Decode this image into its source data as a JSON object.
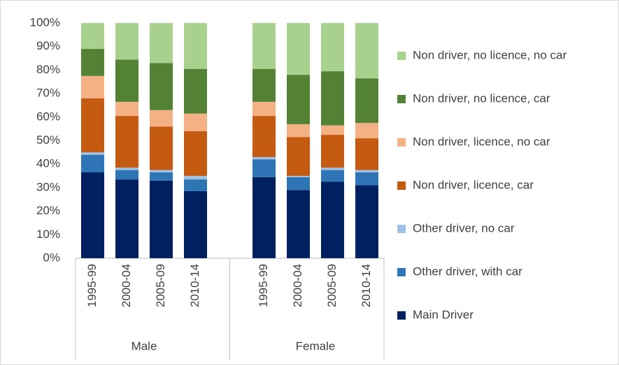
{
  "chart_data": {
    "type": "stacked-bar",
    "groups": [
      {
        "name": "Male",
        "categories": [
          "1995-99",
          "2000-04",
          "2005-09",
          "2010-14"
        ]
      },
      {
        "name": "Female",
        "categories": [
          "1995-99",
          "2000-04",
          "2005-09",
          "2010-14"
        ]
      }
    ],
    "series": [
      {
        "name": "Main Driver",
        "color": "#002060",
        "values": [
          36.5,
          33.5,
          33,
          28.5,
          34.5,
          29,
          32.5,
          31
        ]
      },
      {
        "name": "Other driver, with car",
        "color": "#2e75b6",
        "values": [
          7.5,
          4,
          3.5,
          5,
          7.5,
          5.5,
          5,
          5.5
        ]
      },
      {
        "name": "Other driver, no car",
        "color": "#9dc3e6",
        "values": [
          1,
          1,
          1,
          1.5,
          1,
          0.5,
          1,
          1
        ]
      },
      {
        "name": "Non driver, licence, car",
        "color": "#c55a11",
        "values": [
          23,
          22,
          18.5,
          19,
          17.5,
          16.5,
          14,
          13.5
        ]
      },
      {
        "name": "Non driver, licence, no car",
        "color": "#f4b183",
        "values": [
          9.5,
          6,
          7,
          7.5,
          6,
          5.5,
          4,
          6.5
        ]
      },
      {
        "name": "Non driver, no licence, car",
        "color": "#548235",
        "values": [
          11.5,
          18,
          20,
          19,
          14,
          21,
          23,
          19
        ]
      },
      {
        "name": "Non driver, no licence, no car",
        "color": "#a9d18e",
        "values": [
          11,
          15.5,
          17,
          19.5,
          19.5,
          22,
          20.5,
          23.5
        ]
      }
    ],
    "ylim": [
      0,
      100
    ],
    "yticks": [
      {
        "value": 0,
        "label": "0%"
      },
      {
        "value": 10,
        "label": "10%"
      },
      {
        "value": 20,
        "label": "20%"
      },
      {
        "value": 30,
        "label": "30%"
      },
      {
        "value": 40,
        "label": "40%"
      },
      {
        "value": 50,
        "label": "50%"
      },
      {
        "value": 60,
        "label": "60%"
      },
      {
        "value": 70,
        "label": "70%"
      },
      {
        "value": 80,
        "label": "80%"
      },
      {
        "value": 90,
        "label": "90%"
      },
      {
        "value": 100,
        "label": "100%"
      }
    ],
    "legend": "right"
  }
}
